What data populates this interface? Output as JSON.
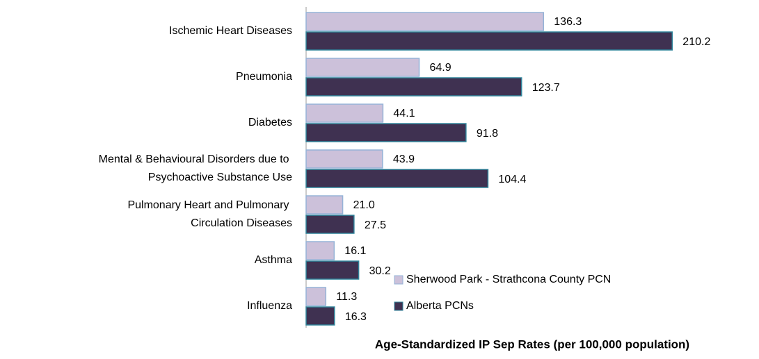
{
  "chart_data": {
    "type": "bar",
    "orientation": "horizontal",
    "x_label": "Age-Standardized IP Sep Rates (per 100,000 population)",
    "categories": [
      "Ischemic Heart Diseases",
      "Pneumonia",
      "Diabetes",
      "Mental & Behavioural Disorders due to Psychoactive Substance Use",
      "Pulmonary Heart and Pulmonary Circulation Diseases",
      "Asthma",
      "Influenza"
    ],
    "series": [
      {
        "name": "Sherwood Park - Strathcona County PCN",
        "color": "#ccc1da",
        "stroke": "#95b3d7",
        "values": [
          136.3,
          64.9,
          44.1,
          43.9,
          21.0,
          16.1,
          11.3
        ],
        "value_labels": [
          "136.3",
          "64.9",
          "44.1",
          "43.9",
          "21.0",
          "16.1",
          "11.3"
        ]
      },
      {
        "name": "Alberta PCNs",
        "color": "#3f3151",
        "stroke": "#31859c",
        "values": [
          210.2,
          123.7,
          91.8,
          104.4,
          27.5,
          30.2,
          16.3
        ],
        "value_labels": [
          "210.2",
          "123.7",
          "91.8",
          "104.4",
          "27.5",
          "30.2",
          "16.3"
        ]
      }
    ],
    "xlim": [
      0,
      260
    ],
    "legend": "lower right"
  }
}
